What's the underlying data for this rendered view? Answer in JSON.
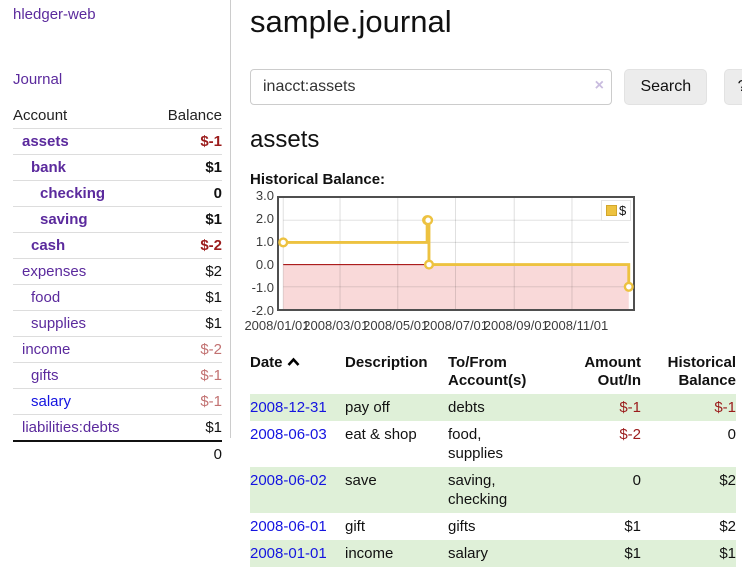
{
  "app": {
    "brand": "hledger-web",
    "nav_journal": "Journal"
  },
  "sidebar": {
    "table": {
      "col_account": "Account",
      "col_balance": "Balance"
    },
    "accounts": [
      {
        "name": "assets",
        "depth": 1,
        "bold": true,
        "balance": "$-1",
        "balance_tone": "neg-strong"
      },
      {
        "name": "bank",
        "depth": 2,
        "bold": true,
        "balance": "$1",
        "balance_tone": "normal"
      },
      {
        "name": "checking",
        "depth": 3,
        "bold": true,
        "balance": "0",
        "balance_tone": "normal"
      },
      {
        "name": "saving",
        "depth": 3,
        "bold": true,
        "balance": "$1",
        "balance_tone": "normal"
      },
      {
        "name": "cash",
        "depth": 2,
        "bold": true,
        "balance": "$-2",
        "balance_tone": "neg-strong"
      },
      {
        "name": "expenses",
        "depth": 1,
        "bold": false,
        "balance": "$2",
        "balance_tone": "normal"
      },
      {
        "name": "food",
        "depth": 2,
        "bold": false,
        "balance": "$1",
        "balance_tone": "normal"
      },
      {
        "name": "supplies",
        "depth": 2,
        "bold": false,
        "balance": "$1",
        "balance_tone": "normal"
      },
      {
        "name": "income",
        "depth": 1,
        "bold": false,
        "balance": "$-2",
        "balance_tone": "neg-soft"
      },
      {
        "name": "gifts",
        "depth": 2,
        "bold": false,
        "balance": "$-1",
        "balance_tone": "neg-soft"
      },
      {
        "name": "salary",
        "depth": 2,
        "bold": false,
        "balance": "$-1",
        "balance_tone": "neg-soft",
        "link_style": "unvisited"
      },
      {
        "name": "liabilities:debts",
        "depth": 1,
        "bold": false,
        "balance": "$1",
        "balance_tone": "normal"
      }
    ],
    "total": "0"
  },
  "header": {
    "title": "sample.journal"
  },
  "search": {
    "value": "inacct:assets",
    "clear_icon": "×",
    "button": "Search",
    "help_button": "?"
  },
  "account_page": {
    "heading": "assets",
    "chart_label": "Historical Balance:"
  },
  "chart_data": {
    "type": "line",
    "title": "Historical Balance:",
    "x_range": [
      "2008-01-01",
      "2008-12-31"
    ],
    "y_range": [
      -2,
      3
    ],
    "grid": true,
    "legend_position": "top-right",
    "legend": {
      "label": "$"
    },
    "series": [
      {
        "name": "$",
        "color": "#edc240",
        "steps": true,
        "points": [
          {
            "date": "2008-01-01",
            "value": 1
          },
          {
            "date": "2008-06-01",
            "value": 2
          },
          {
            "date": "2008-06-02",
            "value": 2
          },
          {
            "date": "2008-06-03",
            "value": 0
          },
          {
            "date": "2008-12-31",
            "value": -1
          }
        ]
      }
    ],
    "y_ticks": [
      {
        "value": 3,
        "label": "3.0"
      },
      {
        "value": 2,
        "label": "2.0"
      },
      {
        "value": 1,
        "label": "1.0"
      },
      {
        "value": 0,
        "label": "0.0"
      },
      {
        "value": -1,
        "label": "-1.0"
      },
      {
        "value": -2,
        "label": "-2.0"
      }
    ],
    "x_ticks": [
      {
        "date": "2008-01-01",
        "label": "2008/01/01"
      },
      {
        "date": "2008-03-01",
        "label": "2008/03/01"
      },
      {
        "date": "2008-05-01",
        "label": "2008/05/01"
      },
      {
        "date": "2008-07-01",
        "label": "2008/07/01"
      },
      {
        "date": "2008-09-01",
        "label": "2008/09/01"
      },
      {
        "date": "2008-11-01",
        "label": "2008/11/01"
      }
    ],
    "zero_line_color": "#a40000",
    "negative_region_color": "#f9d9d9"
  },
  "register": {
    "columns": {
      "date": "Date",
      "description": "Description",
      "accounts": "To/From Account(s)",
      "amount": "Amount Out/In",
      "balance": "Historical Balance"
    },
    "sort_icon": "chevron-up",
    "rows": [
      {
        "date": "2008-12-31",
        "description": "pay off",
        "accounts": "debts",
        "amount": "$-1",
        "amount_tone": "neg",
        "balance": "$-1",
        "balance_tone": "neg"
      },
      {
        "date": "2008-06-03",
        "description": "eat & shop",
        "accounts": "food, supplies",
        "amount": "$-2",
        "amount_tone": "neg",
        "balance": "0",
        "balance_tone": "normal"
      },
      {
        "date": "2008-06-02",
        "description": "save",
        "accounts": "saving, checking",
        "amount": "0",
        "amount_tone": "normal",
        "balance": "$2",
        "balance_tone": "normal"
      },
      {
        "date": "2008-06-01",
        "description": "gift",
        "accounts": "gifts",
        "amount": "$1",
        "amount_tone": "normal",
        "balance": "$2",
        "balance_tone": "normal"
      },
      {
        "date": "2008-01-01",
        "description": "income",
        "accounts": "salary",
        "amount": "$1",
        "amount_tone": "normal",
        "balance": "$1",
        "balance_tone": "normal"
      }
    ]
  },
  "colors": {
    "link_purple": "#5b2a9d",
    "link_blue": "#1414e0",
    "negative_strong": "#9b1c1c",
    "negative_soft": "#c27272",
    "stripe_green": "#dff0d8",
    "chart_series": "#edc240"
  }
}
